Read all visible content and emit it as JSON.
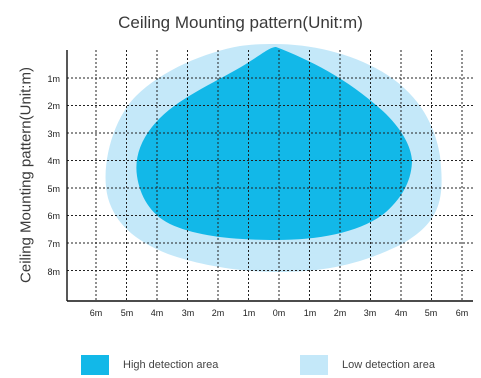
{
  "title": "Ceiling Mounting pattern(Unit:m)",
  "ylabel": "Ceiling Mounting pattern(Unit:m)",
  "colors": {
    "high": "#12b8e8",
    "low": "#c4e8f9",
    "grid": "#222222",
    "axis": "#111111"
  },
  "y_ticks": [
    "1m",
    "2m",
    "3m",
    "4m",
    "5m",
    "6m",
    "7m",
    "8m"
  ],
  "x_ticks": [
    "6m",
    "5m",
    "4m",
    "3m",
    "2m",
    "1m",
    "0m",
    "1m",
    "2m",
    "3m",
    "4m",
    "5m",
    "6m"
  ],
  "legend": [
    {
      "label": "High detection area",
      "color": "#12b8e8"
    },
    {
      "label": "Low detection area",
      "color": "#c4e8f9"
    }
  ]
}
